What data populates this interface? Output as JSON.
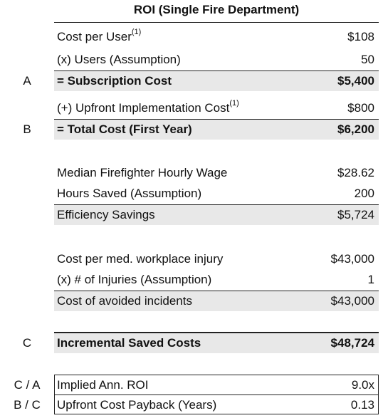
{
  "title": "ROI (Single Fire Department)",
  "subscription": {
    "cost_per_user_label": "Cost per User",
    "cost_per_user_note": "(1)",
    "cost_per_user_value": "$108",
    "users_label": "(x) Users (Assumption)",
    "users_value": "50",
    "subtotal_marker": "A",
    "subtotal_label": "= Subscription Cost",
    "subtotal_value": "$5,400"
  },
  "total_cost": {
    "upfront_label": "(+) Upfront Implementation Cost",
    "upfront_note": "(1)",
    "upfront_value": "$800",
    "total_marker": "B",
    "total_label": "= Total Cost (First Year)",
    "total_value": "$6,200"
  },
  "efficiency": {
    "wage_label": "Median Firefighter Hourly Wage",
    "wage_value": "$28.62",
    "hours_label": "Hours Saved (Assumption)",
    "hours_value": "200",
    "savings_label": "Efficiency Savings",
    "savings_value": "$5,724"
  },
  "injury": {
    "cost_label": "Cost per med. workplace injury",
    "cost_value": "$43,000",
    "count_label": "(x) # of Injuries (Assumption)",
    "count_value": "1",
    "avoided_label": "Cost of avoided incidents",
    "avoided_value": "$43,000"
  },
  "incremental": {
    "marker": "C",
    "label": "Incremental Saved Costs",
    "value": "$48,724"
  },
  "metrics": {
    "roi_marker": "C / A",
    "roi_label": "Implied Ann. ROI",
    "roi_value": "9.0x",
    "payback_marker": "B / C",
    "payback_label": "Upfront Cost Payback (Years)",
    "payback_value": "0.13"
  },
  "colors": {
    "shade": "#e8e8e8",
    "rule": "#222222",
    "text": "#111111"
  }
}
